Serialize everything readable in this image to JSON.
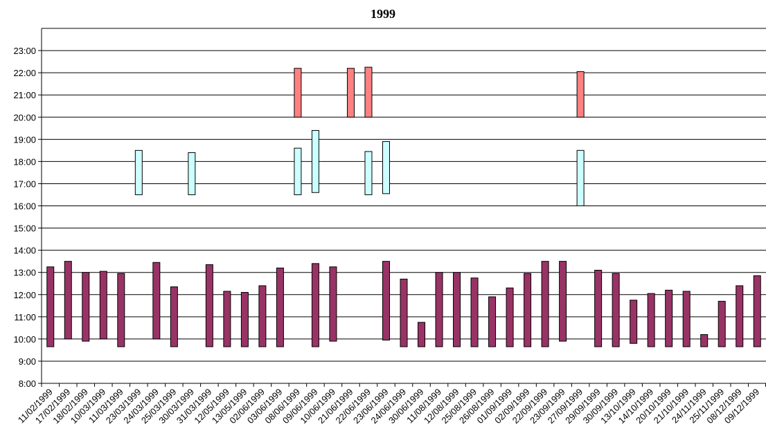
{
  "chart_data": {
    "type": "bar",
    "subtype": "floating-range",
    "title": "1999",
    "xlabel": "",
    "ylabel": "",
    "ylim": [
      8,
      24
    ],
    "y_ticks": [
      "8:00",
      "9:00",
      "10:00",
      "11:00",
      "12:00",
      "13:00",
      "14:00",
      "15:00",
      "16:00",
      "17:00",
      "18:00",
      "19:00",
      "20:00",
      "21:00",
      "22:00",
      "23:00"
    ],
    "grid": "horizontal",
    "categories": [
      "11/02/1999",
      "17/02/1999",
      "18/02/1999",
      "10/03/1999",
      "11/03/1999",
      "23/03/1999",
      "24/03/1999",
      "25/03/1999",
      "30/03/1999",
      "31/03/1999",
      "12/05/1999",
      "13/05/1999",
      "02/06/1999",
      "03/06/1999",
      "08/06/1999",
      "09/06/1999",
      "10/06/1999",
      "21/06/1999",
      "22/06/1999",
      "23/06/1999",
      "24/06/1999",
      "30/06/1999",
      "11/08/1999",
      "12/08/1999",
      "25/08/1999",
      "26/08/1999",
      "01/09/1999",
      "02/09/1999",
      "22/09/1999",
      "23/09/1999",
      "27/09/1999",
      "29/09/1999",
      "30/09/1999",
      "13/10/1999",
      "14/10/1999",
      "20/10/1999",
      "21/10/1999",
      "24/11/1999",
      "25/11/1999",
      "08/12/1999",
      "09/12/1999"
    ],
    "series": [
      {
        "color": "#993366",
        "ranges": [
          [
            9.65,
            13.25
          ],
          [
            10.0,
            13.5
          ],
          [
            9.9,
            13.0
          ],
          [
            10.0,
            13.05
          ],
          [
            9.65,
            12.95
          ],
          null,
          [
            10.0,
            13.45
          ],
          [
            9.65,
            12.35
          ],
          null,
          [
            9.65,
            13.35
          ],
          [
            9.65,
            12.15
          ],
          [
            9.65,
            12.1
          ],
          [
            9.65,
            12.4
          ],
          [
            9.65,
            13.2
          ],
          null,
          [
            9.65,
            13.4
          ],
          [
            9.9,
            13.25
          ],
          null,
          null,
          [
            9.95,
            13.5
          ],
          [
            9.65,
            12.7
          ],
          [
            9.65,
            10.75
          ],
          [
            9.65,
            13.0
          ],
          [
            9.65,
            13.0
          ],
          [
            9.65,
            12.75
          ],
          [
            9.65,
            11.9
          ],
          [
            9.65,
            12.3
          ],
          [
            9.65,
            12.95
          ],
          [
            9.65,
            13.5
          ],
          [
            9.9,
            13.5
          ],
          null,
          [
            9.65,
            13.1
          ],
          [
            9.65,
            12.95
          ],
          [
            9.8,
            11.75
          ],
          [
            9.65,
            12.05
          ],
          [
            9.65,
            12.2
          ],
          [
            9.65,
            12.15
          ],
          [
            9.65,
            10.2
          ],
          [
            9.65,
            11.7
          ],
          [
            9.65,
            12.4
          ],
          [
            9.65,
            12.85
          ]
        ]
      },
      {
        "color": "#ccffff",
        "ranges": [
          null,
          null,
          null,
          null,
          null,
          [
            16.5,
            18.5
          ],
          null,
          null,
          [
            16.5,
            18.4
          ],
          null,
          null,
          null,
          null,
          null,
          [
            16.5,
            18.6
          ],
          [
            16.6,
            19.4
          ],
          null,
          null,
          [
            16.5,
            18.45
          ],
          [
            16.55,
            18.9
          ],
          null,
          null,
          null,
          null,
          null,
          null,
          null,
          null,
          null,
          null,
          [
            16.0,
            18.5
          ],
          null,
          null,
          null,
          null,
          null,
          null,
          null,
          null,
          null,
          null
        ]
      },
      {
        "color": "#ff8080",
        "ranges": [
          null,
          null,
          null,
          null,
          null,
          null,
          null,
          null,
          null,
          null,
          null,
          null,
          null,
          null,
          [
            20.0,
            22.2
          ],
          null,
          null,
          [
            20.0,
            22.2
          ],
          [
            20.0,
            22.25
          ],
          null,
          null,
          null,
          null,
          null,
          null,
          null,
          null,
          null,
          null,
          null,
          [
            20.0,
            22.05
          ],
          null,
          null,
          null,
          null,
          null,
          null,
          null,
          null,
          null,
          null
        ]
      }
    ]
  }
}
